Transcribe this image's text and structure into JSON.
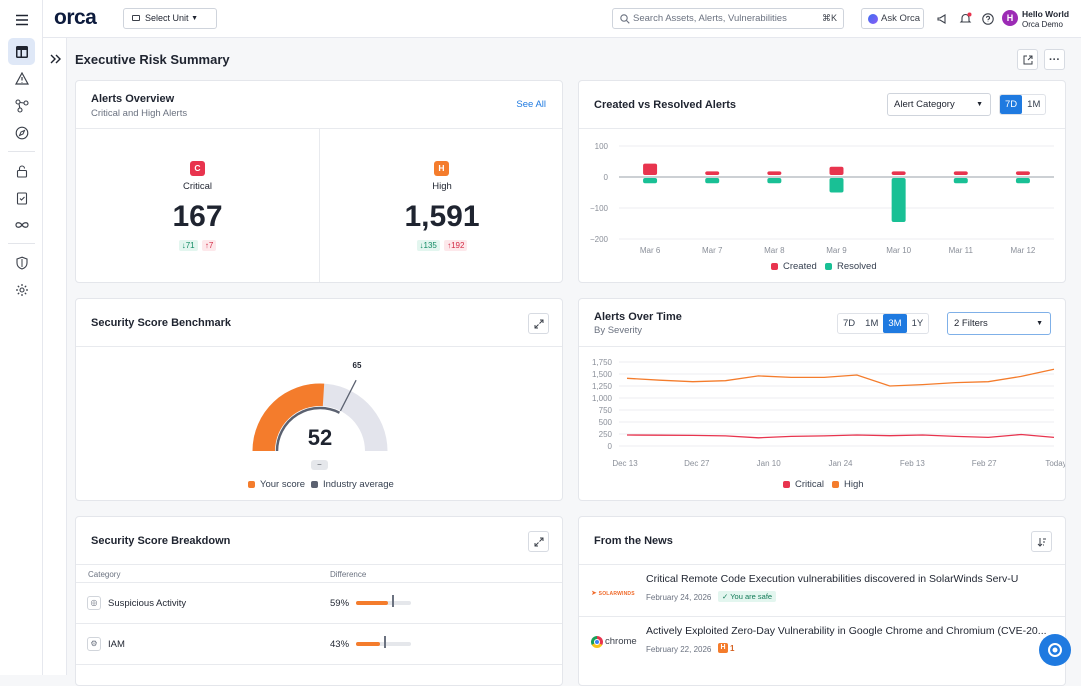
{
  "topbar": {
    "logo": "orca",
    "unit_select": "Select Unit",
    "search_placeholder": "Search Assets, Alerts, Vulnerabilities",
    "search_shortcut": "⌘K",
    "ask_orca": "Ask Orca",
    "user_greeting": "Hello World",
    "user_org": "Orca Demo",
    "avatar_initial": "H"
  },
  "page": {
    "title": "Executive Risk Summary"
  },
  "alerts_overview": {
    "title": "Alerts Overview",
    "subtitle": "Critical and High Alerts",
    "see_all": "See All",
    "critical": {
      "badge": "C",
      "label": "Critical",
      "value": "167",
      "down": "71",
      "up": "7",
      "color": "#e8344e"
    },
    "high": {
      "badge": "H",
      "label": "High",
      "value": "1,591",
      "down": "135",
      "up": "192",
      "color": "#f47c2c"
    }
  },
  "created_vs_resolved": {
    "title": "Created vs Resolved Alerts",
    "dropdown": "Alert Category",
    "ranges": [
      "7D",
      "1M"
    ],
    "active_range": "7D",
    "legend": [
      "Created",
      "Resolved"
    ]
  },
  "security_score": {
    "title": "Security Score Benchmark",
    "score": "52",
    "industry": "65",
    "delta": "–",
    "legend_your": "Your score",
    "legend_industry": "Industry average",
    "colors": {
      "your": "#f47c2c",
      "industry": "#5b6170",
      "track": "#e3e4ec"
    }
  },
  "alerts_over_time": {
    "title": "Alerts Over Time",
    "subtitle": "By Severity",
    "ranges": [
      "7D",
      "1M",
      "3M",
      "1Y"
    ],
    "active_range": "3M",
    "filters": "2 Filters",
    "legend": [
      "Critical",
      "High"
    ]
  },
  "score_breakdown": {
    "title": "Security Score Breakdown",
    "col_category": "Category",
    "col_difference": "Difference",
    "rows": [
      {
        "name": "Suspicious Activity",
        "pct": "59%",
        "value": 59
      },
      {
        "name": "IAM",
        "pct": "43%",
        "value": 43
      }
    ]
  },
  "news": {
    "title": "From the News",
    "items": [
      {
        "source": "SOLARWINDS",
        "title": "Critical Remote Code Execution vulnerabilities discovered in SolarWinds Serv-U",
        "date": "February 24, 2026",
        "badge": "You are safe"
      },
      {
        "source": "chrome",
        "title": "Actively Exploited Zero-Day Vulnerability in Google Chrome and Chromium (CVE-20...",
        "date": "February 22, 2026",
        "badge_letter": "H",
        "badge_count": "1"
      }
    ]
  },
  "chart_data": [
    {
      "type": "bar",
      "title": "Created vs Resolved Alerts",
      "categories": [
        "Mar 6",
        "Mar 7",
        "Mar 8",
        "Mar 9",
        "Mar 10",
        "Mar 11",
        "Mar 12"
      ],
      "series": [
        {
          "name": "Created",
          "color": "#e8344e",
          "values": [
            40,
            15,
            15,
            30,
            15,
            15,
            15
          ]
        },
        {
          "name": "Resolved",
          "color": "#19c095",
          "values": [
            -20,
            -20,
            -20,
            -50,
            -145,
            -20,
            -20
          ]
        }
      ],
      "ylim": [
        -200,
        100
      ],
      "yticks": [
        "100",
        "0",
        "−100",
        "−200"
      ],
      "grid": true,
      "legend": "bottom"
    },
    {
      "type": "line",
      "title": "Alerts Over Time",
      "x_ticks": [
        "Dec 13",
        "Dec 27",
        "Jan 10",
        "Jan 24",
        "Feb 13",
        "Feb 27",
        "Today"
      ],
      "series": [
        {
          "name": "Critical",
          "color": "#e8344e",
          "values": [
            230,
            225,
            220,
            210,
            170,
            200,
            210,
            230,
            215,
            230,
            200,
            180,
            240,
            180
          ]
        },
        {
          "name": "High",
          "color": "#f47c2c",
          "values": [
            1410,
            1370,
            1340,
            1360,
            1460,
            1430,
            1430,
            1480,
            1250,
            1280,
            1320,
            1340,
            1450,
            1600
          ]
        }
      ],
      "ylim": [
        0,
        1750
      ],
      "yticks": [
        "1,750",
        "1,500",
        "1,250",
        "1,000",
        "750",
        "500",
        "250",
        "0"
      ],
      "grid": true,
      "legend": "bottom"
    },
    {
      "type": "bar",
      "title": "Security Score Breakdown",
      "categories": [
        "Suspicious Activity",
        "IAM"
      ],
      "values": [
        59,
        43
      ],
      "xlim": [
        0,
        100
      ]
    }
  ]
}
